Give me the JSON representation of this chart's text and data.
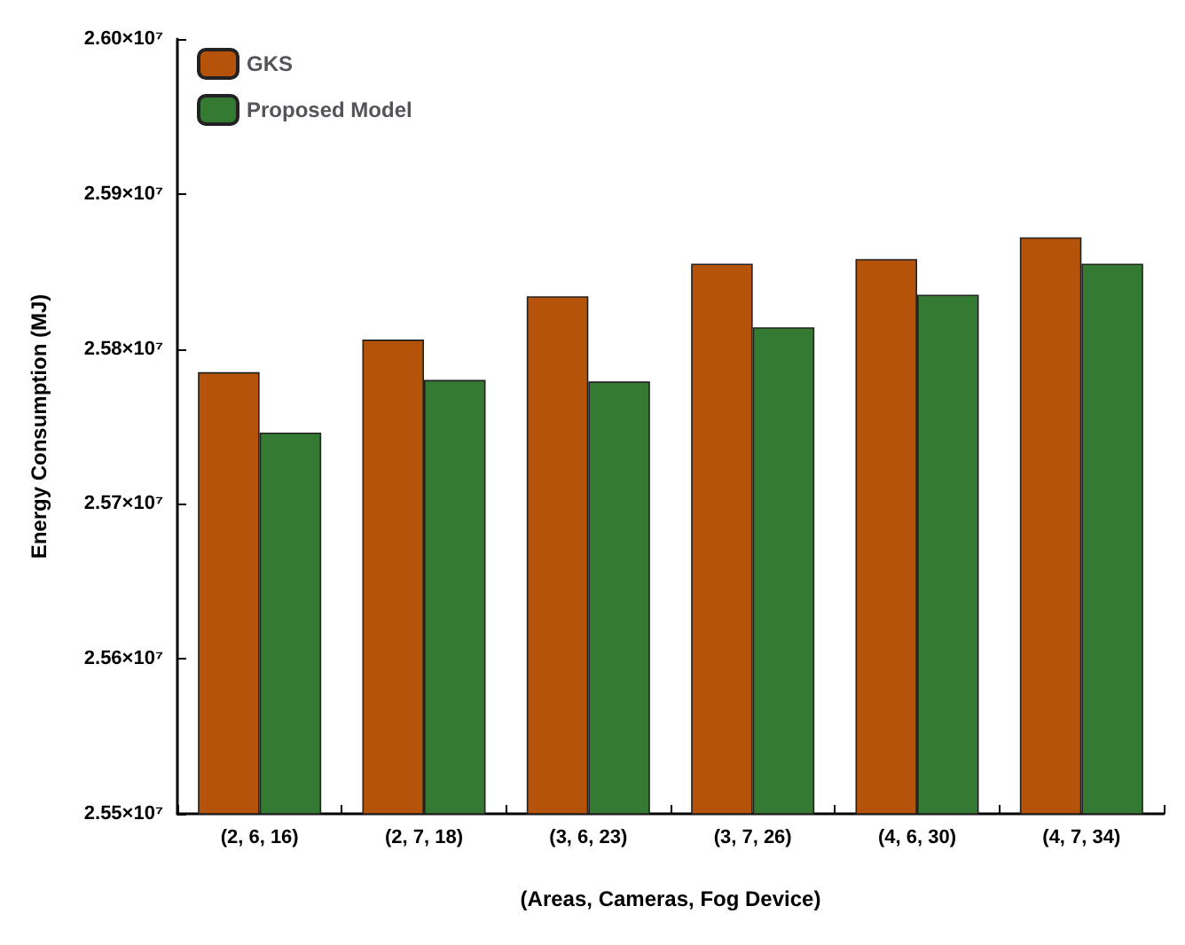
{
  "chart_data": {
    "type": "bar",
    "xlabel": "(Areas, Cameras, Fog Device)",
    "ylabel": "Energy Consumption (MJ)",
    "categories": [
      "(2, 6, 16)",
      "(2, 7, 18)",
      "(3, 6, 23)",
      "(3, 7, 26)",
      "(4, 6, 30)",
      "(4, 7, 34)"
    ],
    "series": [
      {
        "name": "GKS",
        "color": "#b5530a",
        "values": [
          25785000,
          25806000,
          25834000,
          25855000,
          25858000,
          25872000
        ]
      },
      {
        "name": "Proposed Model",
        "color": "#347a32",
        "values": [
          25746000,
          25780000,
          25779000,
          25814000,
          25835000,
          25855000
        ]
      }
    ],
    "ylim": [
      25500000,
      26000000
    ],
    "yticks": [
      {
        "value": 25500000,
        "label": "2.55×10⁷"
      },
      {
        "value": 25600000,
        "label": "2.56×10⁷"
      },
      {
        "value": 25700000,
        "label": "2.57×10⁷"
      },
      {
        "value": 25800000,
        "label": "2.58×10⁷"
      },
      {
        "value": 25900000,
        "label": "2.59×10⁷"
      },
      {
        "value": 26000000,
        "label": "2.60×10⁷"
      }
    ],
    "grid": false,
    "legend": "top left"
  }
}
